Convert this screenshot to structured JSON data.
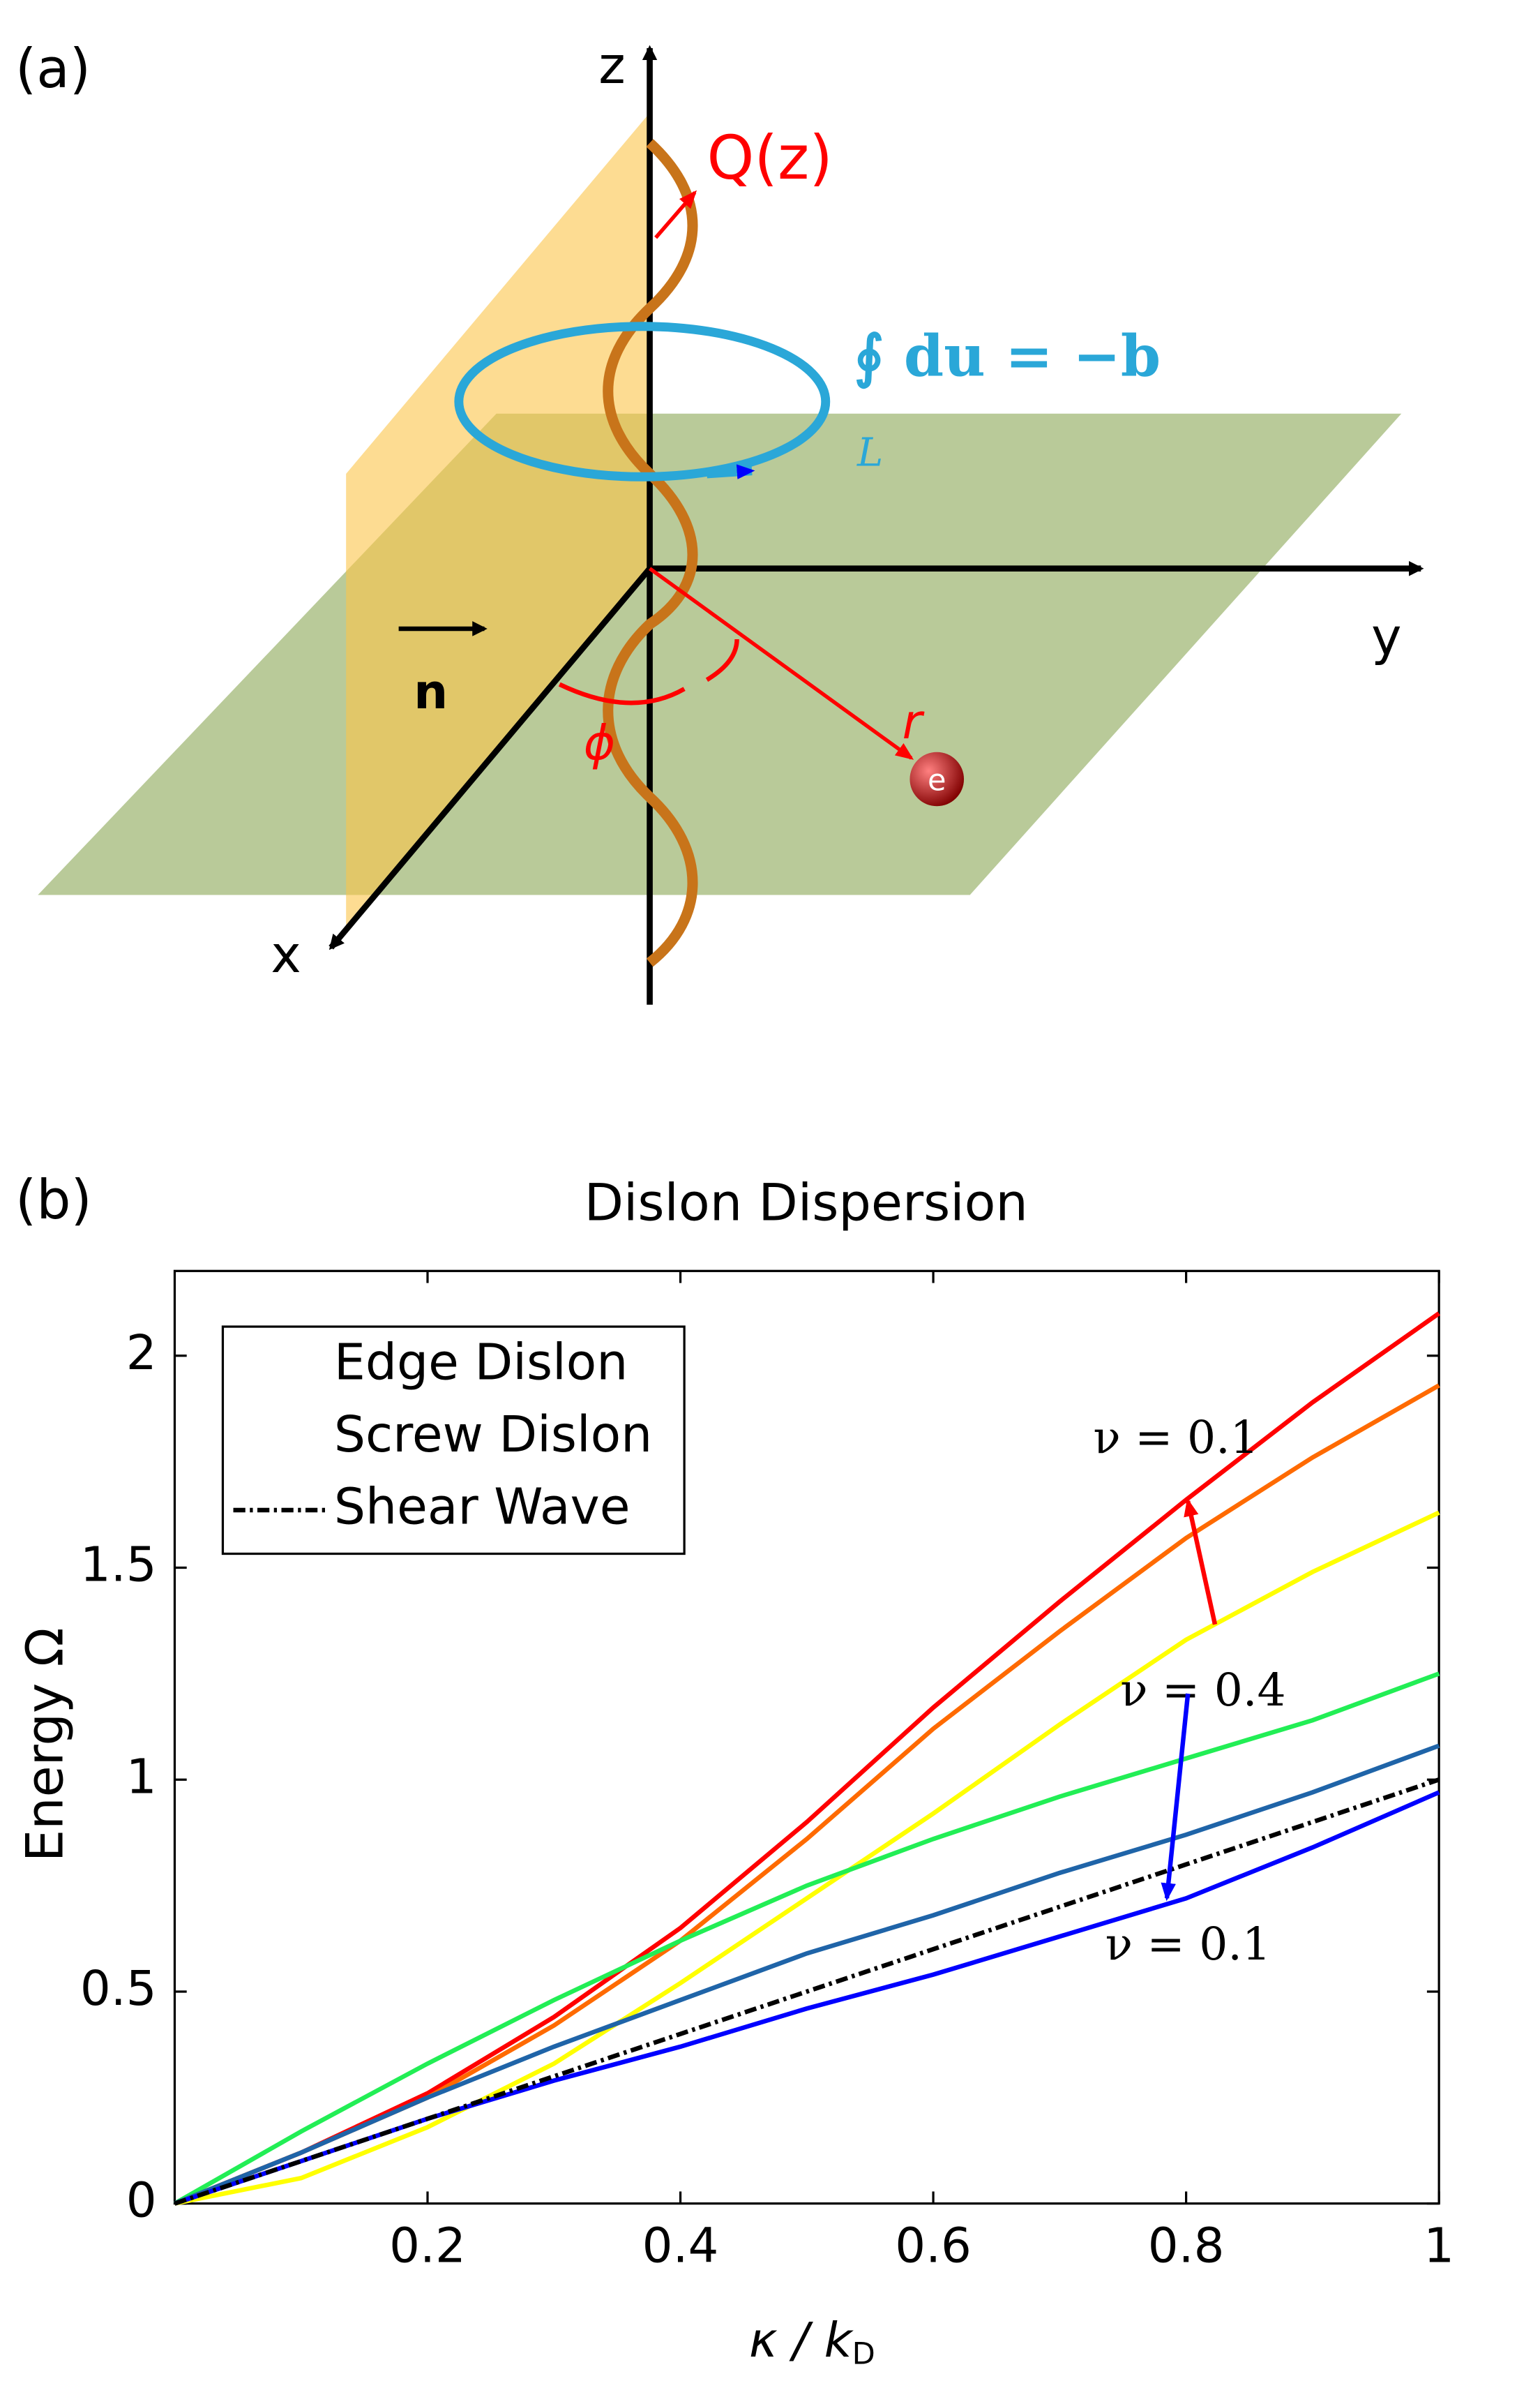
{
  "panel_a": {
    "label": "(a)",
    "z_axis": "z",
    "y_axis": "y",
    "x_axis": "x",
    "charge": "Q(z)",
    "integral": "∮ du = −b",
    "contour": "L",
    "normal": "n",
    "angle": "ϕ",
    "radius": "r",
    "electron": "e"
  },
  "chart_data": {
    "type": "line",
    "panel_label": "(b)",
    "title": "Dislon Dispersion",
    "xlabel": "κ / k",
    "xlabel_sub": "D",
    "ylabel": "Energy  Ω",
    "x": [
      0,
      0.1,
      0.2,
      0.3,
      0.4,
      0.5,
      0.6,
      0.7,
      0.8,
      0.9,
      1
    ],
    "xlim": [
      0,
      1
    ],
    "ylim": [
      0,
      2.2
    ],
    "xticks": [
      0.2,
      0.4,
      0.6,
      0.8,
      1
    ],
    "yticks": [
      0,
      0.5,
      1,
      1.5,
      2
    ],
    "series": [
      {
        "color": "#ff0000",
        "values": [
          0,
          0.12,
          0.26,
          0.44,
          0.65,
          0.9,
          1.17,
          1.42,
          1.66,
          1.89,
          2.1
        ]
      },
      {
        "color": "#ff6a00",
        "values": [
          0,
          0.12,
          0.25,
          0.42,
          0.62,
          0.86,
          1.12,
          1.35,
          1.57,
          1.76,
          1.93
        ]
      },
      {
        "color": "#ffff00",
        "values": [
          0,
          0.06,
          0.18,
          0.33,
          0.52,
          0.72,
          0.92,
          1.13,
          1.33,
          1.49,
          1.63
        ]
      },
      {
        "color": "#22ee55",
        "values": [
          0,
          0.17,
          0.33,
          0.48,
          0.62,
          0.75,
          0.86,
          0.96,
          1.05,
          1.14,
          1.25
        ]
      },
      {
        "color": "#1f64a8",
        "values": [
          0,
          0.12,
          0.25,
          0.37,
          0.48,
          0.59,
          0.68,
          0.78,
          0.87,
          0.97,
          1.08
        ]
      },
      {
        "color": "#0000ff",
        "values": [
          0,
          0.1,
          0.2,
          0.29,
          0.37,
          0.46,
          0.54,
          0.63,
          0.72,
          0.84,
          0.97
        ]
      },
      {
        "color": "#000000",
        "dash": "dashdot",
        "values": [
          0,
          0.1,
          0.2,
          0.3,
          0.4,
          0.5,
          0.6,
          0.7,
          0.8,
          0.9,
          1
        ]
      }
    ],
    "legend": [
      {
        "name": "Edge Dislon",
        "colors": [
          "#ff0000",
          "#ffff00"
        ]
      },
      {
        "name": "Screw Dislon",
        "colors": [
          "#0000ff",
          "#22ee88"
        ]
      },
      {
        "name": "Shear Wave",
        "colors": [
          "#000000"
        ],
        "dash": "dashdot"
      }
    ],
    "annotations": [
      {
        "text": "ν = 0.1",
        "color": "#ff0000"
      },
      {
        "text": "ν = 0.4",
        "color": "#ff0000"
      },
      {
        "text": "ν = 0.1",
        "color": "#0000ff"
      }
    ]
  }
}
